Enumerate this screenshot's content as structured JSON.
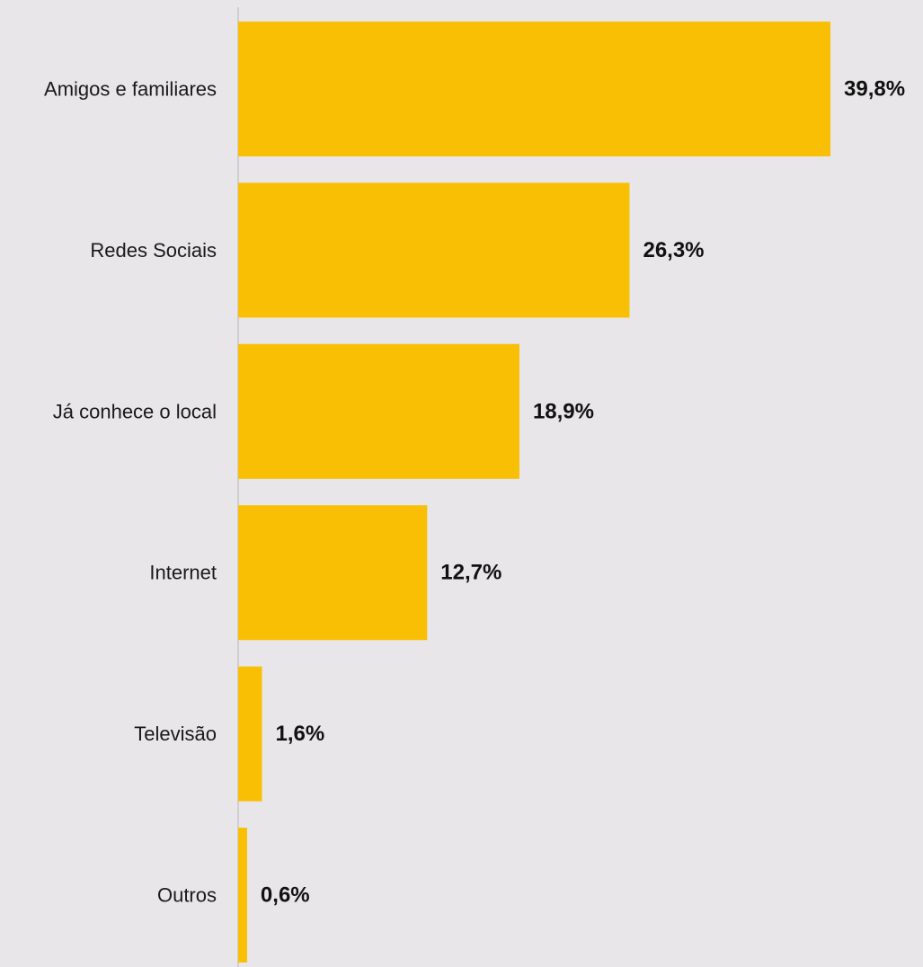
{
  "chart_data": {
    "type": "bar",
    "orientation": "horizontal",
    "categories": [
      "Amigos e familiares",
      "Redes Sociais",
      "Já conhece o local",
      "Internet",
      "Televisão",
      "Outros"
    ],
    "values": [
      39.8,
      26.3,
      18.9,
      12.7,
      1.6,
      0.6
    ],
    "value_labels": [
      "39,8%",
      "26,3%",
      "18,9%",
      "12,7%",
      "1,6%",
      "0,6%"
    ],
    "title": "",
    "xlabel": "",
    "ylabel": "",
    "xlim": [
      0,
      39.8
    ],
    "grid": false,
    "legend": "none",
    "colors": {
      "bar": "#f9bf05",
      "background": "#e8e6e8",
      "axis": "#d0ced0"
    }
  }
}
